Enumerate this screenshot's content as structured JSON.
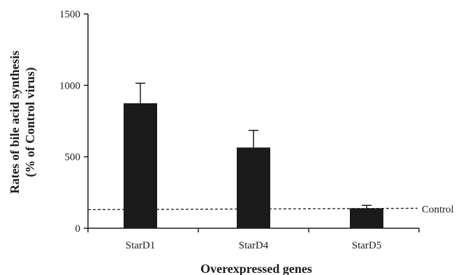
{
  "chart_data": {
    "type": "bar",
    "categories": [
      "StarD1",
      "StarD4",
      "StarD5"
    ],
    "series": [
      {
        "values": [
          875,
          565,
          140
        ],
        "error": [
          140,
          120,
          20
        ]
      }
    ],
    "ylim": [
      0,
      1500
    ],
    "yticks": [
      0,
      500,
      1000,
      1500
    ],
    "ylabel_line1": "Rates of bile acid synthesis",
    "ylabel_line2": "(% of Control virus)",
    "xlabel": "Overexpressed genes",
    "reference_line": {
      "value": 130,
      "label": "Control",
      "style": "dashed"
    },
    "bar_color": "#1a1a1a",
    "grid": false
  }
}
